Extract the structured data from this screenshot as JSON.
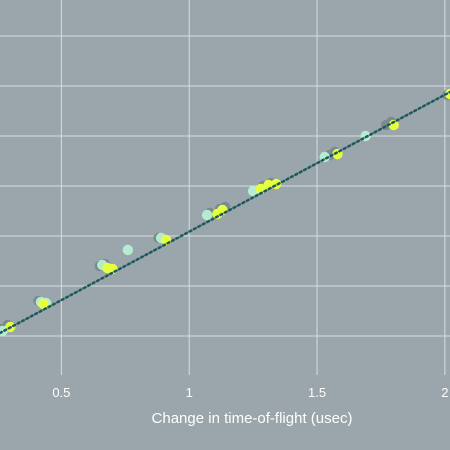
{
  "chart_data": {
    "type": "scatter",
    "xlabel": "Change in time-of-flight (usec)",
    "ylabel": "",
    "title": "",
    "xlim": [
      0.26,
      2.02
    ],
    "ylim": [
      -0.39,
      3.36
    ],
    "grid": true,
    "x_ticks": [
      0.5,
      1,
      1.5,
      2
    ],
    "x_tick_labels": [
      "0.5",
      "1",
      "1.5",
      "2"
    ],
    "y_gridlines": [
      0,
      0.5,
      1,
      1.5,
      2,
      2.5,
      3
    ],
    "colors": {
      "background": "#9aa6ab",
      "gridline": "#d7dde0",
      "fit_line": "#1e5a5c",
      "dark_points": "#7a8a90",
      "light_points": "#b7f0d4",
      "bright_points": "#e6ff3f"
    },
    "series": [
      {
        "color": "dark_points",
        "x": [
          0.26,
          0.29,
          0.41,
          0.65,
          0.67,
          0.88,
          1.08,
          1.12,
          1.14,
          1.29,
          1.32,
          1.55,
          1.57,
          1.77,
          1.79,
          2.01
        ],
        "y": [
          0.07,
          0.11,
          0.35,
          0.7,
          0.72,
          0.98,
          1.23,
          1.27,
          1.29,
          1.5,
          1.53,
          1.81,
          1.84,
          2.11,
          2.14,
          2.41
        ]
      },
      {
        "color": "light_points",
        "x": [
          0.27,
          0.42,
          0.44,
          0.66,
          0.76,
          0.89,
          1.07,
          1.25,
          1.53,
          1.69
        ],
        "y": [
          0.05,
          0.34,
          0.33,
          0.71,
          0.86,
          0.98,
          1.21,
          1.45,
          1.79,
          2.0
        ],
        "open": true
      },
      {
        "color": "bright_points",
        "x": [
          0.3,
          0.43,
          0.68,
          0.7,
          0.91,
          1.11,
          1.13,
          1.28,
          1.31,
          1.34,
          1.58,
          1.8,
          2.02
        ],
        "y": [
          0.09,
          0.32,
          0.68,
          0.67,
          0.96,
          1.22,
          1.26,
          1.47,
          1.51,
          1.52,
          1.82,
          2.11,
          2.42
        ]
      }
    ],
    "fit_line": {
      "x": [
        0.26,
        2.02
      ],
      "y": [
        0.03,
        2.44
      ],
      "style": "dotted"
    }
  }
}
